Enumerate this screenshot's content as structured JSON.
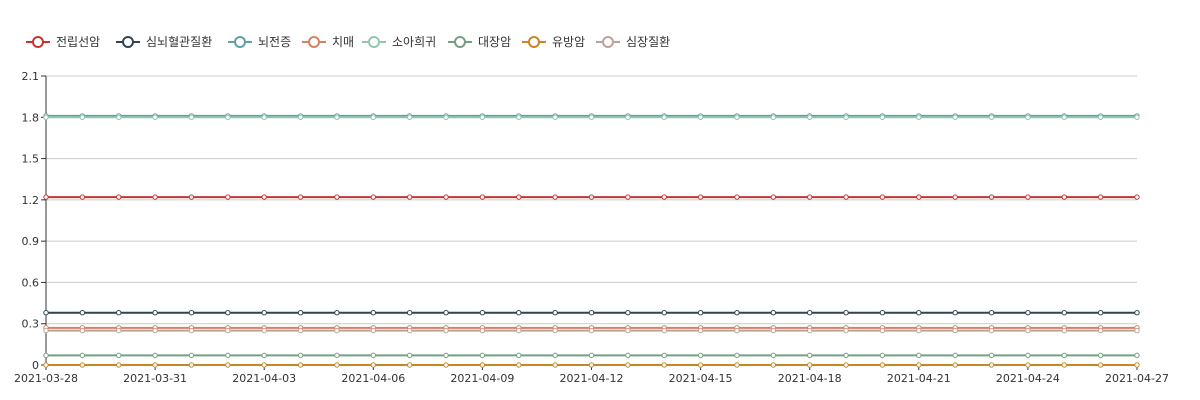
{
  "chart_data": {
    "type": "line",
    "title": "",
    "xlabel": "",
    "ylabel": "",
    "ylim": [
      0,
      2.1
    ],
    "yticks": [
      "0",
      "0.3",
      "0.6",
      "0.9",
      "1.2",
      "1.5",
      "1.8",
      "2.1"
    ],
    "grid": true,
    "legend_position": "top-left",
    "x_tick_labels": [
      "2021-03-28",
      "2021-03-31",
      "2021-04-03",
      "2021-04-06",
      "2021-04-09",
      "2021-04-12",
      "2021-04-15",
      "2021-04-18",
      "2021-04-21",
      "2021-04-24",
      "2021-04-27"
    ],
    "x_start": "2021-03-28",
    "x_end": "2021-04-27",
    "series": [
      {
        "name": "전립선암",
        "color": "#c23531",
        "value": 1.22
      },
      {
        "name": "심뇌혈관질환",
        "color": "#2f4554",
        "value": 0.38
      },
      {
        "name": "뇌전증",
        "color": "#61a0a8",
        "value": 1.81
      },
      {
        "name": "치매",
        "color": "#d48265",
        "value": 0.27
      },
      {
        "name": "소아희귀",
        "color": "#91c7ae",
        "value": 1.8
      },
      {
        "name": "대장암",
        "color": "#749f83",
        "value": 0.07
      },
      {
        "name": "유방암",
        "color": "#ca8622",
        "value": 0.0
      },
      {
        "name": "심장질환",
        "color": "#bda29a",
        "value": 0.25
      }
    ]
  }
}
